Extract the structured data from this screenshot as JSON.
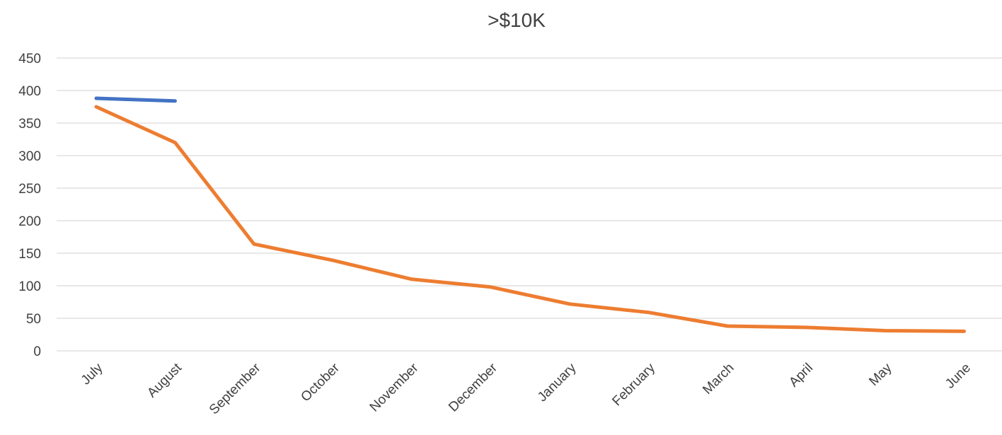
{
  "chart_data": {
    "type": "line",
    "title": ">$10K",
    "xlabel": "",
    "ylabel": "",
    "categories": [
      "July",
      "August",
      "September",
      "October",
      "November",
      "December",
      "January",
      "February",
      "March",
      "April",
      "May",
      "June"
    ],
    "y_ticks": [
      "0",
      "50",
      "100",
      "150",
      "200",
      "250",
      "300",
      "350",
      "400",
      "450"
    ],
    "ylim": [
      0,
      450
    ],
    "grid": true,
    "legend": "none",
    "series": [
      {
        "color": "#4472c4",
        "values": [
          388,
          384,
          null,
          null,
          null,
          null,
          null,
          null,
          null,
          null,
          null,
          null
        ]
      },
      {
        "color": "#ed7d31",
        "values": [
          375,
          320,
          164,
          139,
          110,
          98,
          72,
          59,
          38,
          36,
          31,
          30
        ]
      }
    ]
  }
}
